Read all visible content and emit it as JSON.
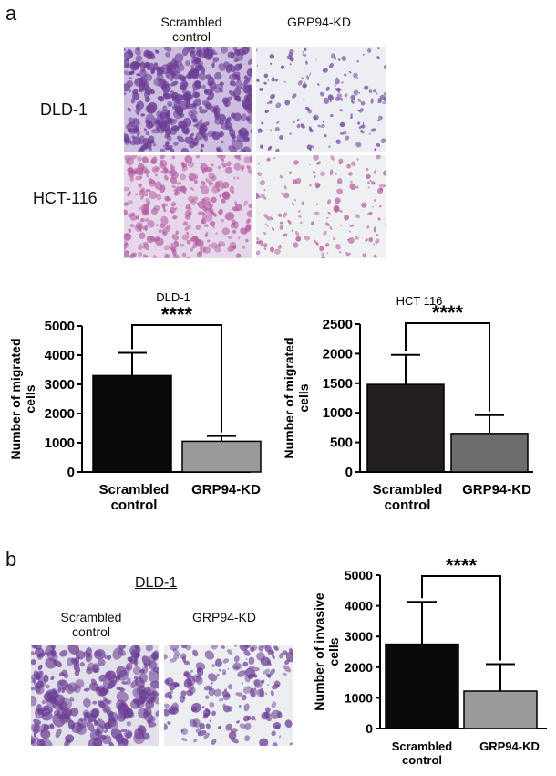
{
  "panel_a": {
    "letter": "a",
    "columns": [
      "Scrambled\ncontrol",
      "GRP94-KD"
    ],
    "rows": [
      "DLD-1",
      "HCT-116"
    ]
  },
  "panel_b": {
    "letter": "b",
    "title": "DLD-1",
    "columns": [
      "Scrambled\ncontrol",
      "GRP94-KD"
    ]
  },
  "colors": {
    "stain": "#6b3d94",
    "stain_light": "#a27cc2",
    "stain_pink": "#b35aa0",
    "bar_black": "#0a0a0a",
    "bar_dark": "#231f20",
    "bar_gray": "#8c8c8c"
  },
  "chart_data": [
    {
      "type": "bar",
      "title": "DLD-1",
      "categories": [
        "Scrambled\ncontrol",
        "GRP94-KD"
      ],
      "values": [
        3300,
        1050
      ],
      "errors": [
        780,
        180
      ],
      "ylabel": "Number of migrated\ncells",
      "ylim": [
        0,
        5000
      ],
      "yticks": [
        0,
        1000,
        2000,
        3000,
        4000,
        5000
      ],
      "bar_colors": [
        "#0a0a0a",
        "#9a9a9a"
      ],
      "significance": "****"
    },
    {
      "type": "bar",
      "title": "HCT 116",
      "categories": [
        "Scrambled\ncontrol",
        "GRP94-KD"
      ],
      "values": [
        1480,
        650
      ],
      "errors": [
        500,
        310
      ],
      "ylabel": "Number of migrated\ncells",
      "ylim": [
        0,
        2500
      ],
      "yticks": [
        0,
        500,
        1000,
        1500,
        2000,
        2500
      ],
      "bar_colors": [
        "#231f20",
        "#6d6d6d"
      ],
      "significance": "****"
    },
    {
      "type": "bar",
      "title": "",
      "categories": [
        "Scrambled\ncontrol",
        "GRP94-KD"
      ],
      "values": [
        2750,
        1220
      ],
      "errors": [
        1380,
        880
      ],
      "ylabel": "Number of invasive\ncells",
      "ylim": [
        0,
        5000
      ],
      "yticks": [
        0,
        1000,
        2000,
        3000,
        4000,
        5000
      ],
      "bar_colors": [
        "#0a0a0a",
        "#9a9a9a"
      ],
      "significance": "****"
    }
  ]
}
